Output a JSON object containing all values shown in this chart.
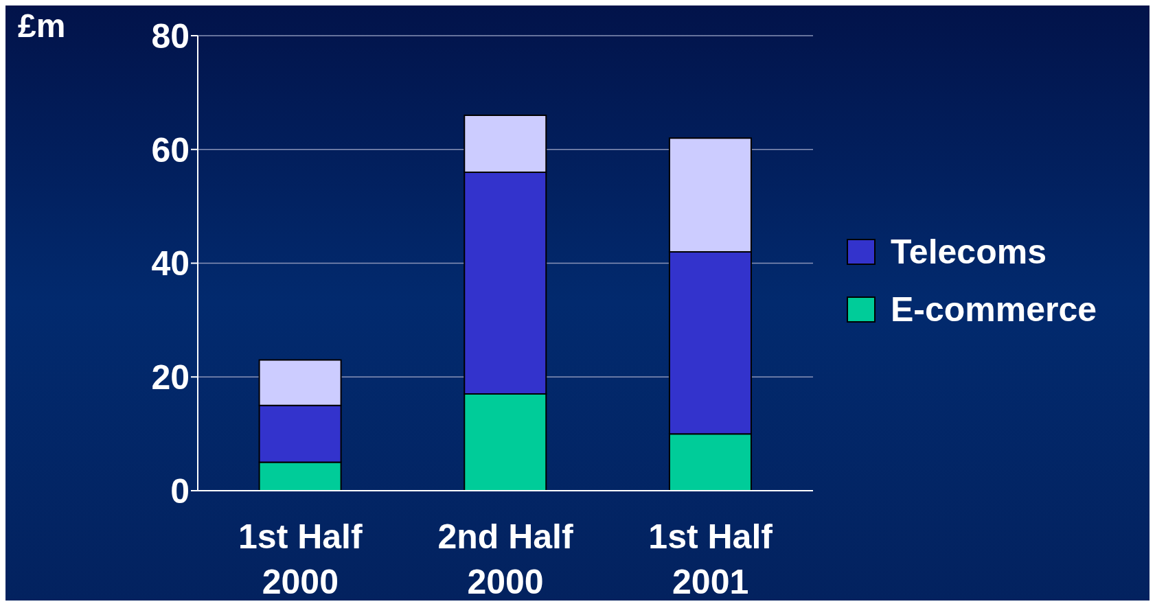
{
  "chart_data": {
    "type": "bar",
    "ylabel": "£m",
    "categories": [
      "1st Half 2000",
      "2nd Half 2000",
      "1st Half 2001"
    ],
    "stacked": true,
    "series": [
      {
        "name": "E-commerce",
        "color": "#00cc99",
        "values": [
          5,
          17,
          10
        ]
      },
      {
        "name": "Telecoms",
        "color": "#3333cc",
        "values": [
          10,
          39,
          32
        ]
      },
      {
        "color": "#ccccff",
        "values": [
          8,
          10,
          20
        ]
      }
    ],
    "ylim": [
      0,
      80
    ],
    "yticks": [
      0,
      20,
      40,
      60,
      80
    ],
    "grid": "y",
    "legend": "right"
  }
}
